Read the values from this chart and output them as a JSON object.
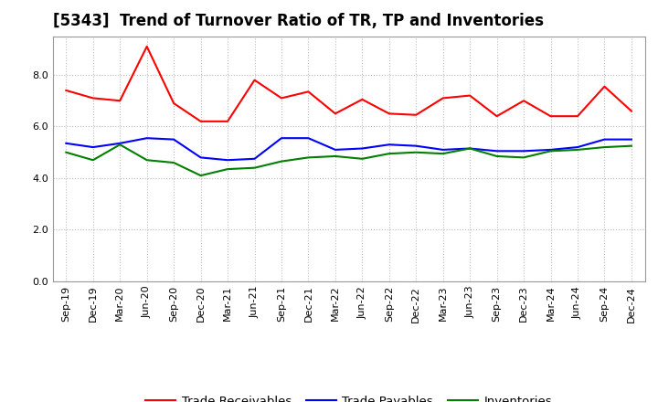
{
  "title": "[5343]  Trend of Turnover Ratio of TR, TP and Inventories",
  "x_labels": [
    "Sep-19",
    "Dec-19",
    "Mar-20",
    "Jun-20",
    "Sep-20",
    "Dec-20",
    "Mar-21",
    "Jun-21",
    "Sep-21",
    "Dec-21",
    "Mar-22",
    "Jun-22",
    "Sep-22",
    "Dec-22",
    "Mar-23",
    "Jun-23",
    "Sep-23",
    "Dec-23",
    "Mar-24",
    "Jun-24",
    "Sep-24",
    "Dec-24"
  ],
  "trade_receivables": [
    7.4,
    7.1,
    7.0,
    9.1,
    6.9,
    6.2,
    6.2,
    7.8,
    7.1,
    7.35,
    6.5,
    7.05,
    6.5,
    6.45,
    7.1,
    7.2,
    6.4,
    7.0,
    6.4,
    6.4,
    7.55,
    6.6
  ],
  "trade_payables": [
    5.35,
    5.2,
    5.35,
    5.55,
    5.5,
    4.8,
    4.7,
    4.75,
    5.55,
    5.55,
    5.1,
    5.15,
    5.3,
    5.25,
    5.1,
    5.15,
    5.05,
    5.05,
    5.1,
    5.2,
    5.5,
    5.5
  ],
  "inventories": [
    5.0,
    4.7,
    5.3,
    4.7,
    4.6,
    4.1,
    4.35,
    4.4,
    4.65,
    4.8,
    4.85,
    4.75,
    4.95,
    5.0,
    4.95,
    5.15,
    4.85,
    4.8,
    5.05,
    5.1,
    5.2,
    5.25
  ],
  "tr_color": "#ff0000",
  "tp_color": "#0000ff",
  "inv_color": "#008000",
  "bg_color": "#ffffff",
  "plot_bg_color": "#ffffff",
  "ylim": [
    0,
    9.5
  ],
  "yticks": [
    0.0,
    2.0,
    4.0,
    6.0,
    8.0
  ],
  "legend_labels": [
    "Trade Receivables",
    "Trade Payables",
    "Inventories"
  ],
  "line_width": 1.5,
  "grid_color": "#bbbbbb",
  "title_fontsize": 12,
  "tick_fontsize": 8,
  "legend_fontsize": 9.5
}
